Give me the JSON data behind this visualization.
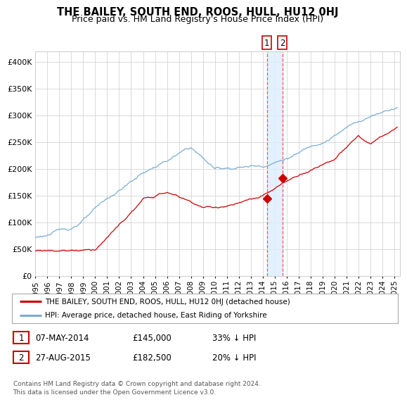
{
  "title": "THE BAILEY, SOUTH END, ROOS, HULL, HU12 0HJ",
  "subtitle": "Price paid vs. HM Land Registry's House Price Index (HPI)",
  "legend_line1": "THE BAILEY, SOUTH END, ROOS, HULL, HU12 0HJ (detached house)",
  "legend_line2": "HPI: Average price, detached house, East Riding of Yorkshire",
  "transaction1_label": "1",
  "transaction1_date": "07-MAY-2014",
  "transaction1_price": 145000,
  "transaction1_hpi_pct": "33% ↓ HPI",
  "transaction2_label": "2",
  "transaction2_date": "27-AUG-2015",
  "transaction2_price": 182500,
  "transaction2_hpi_pct": "20% ↓ HPI",
  "footer": "Contains HM Land Registry data © Crown copyright and database right 2024.\nThis data is licensed under the Open Government Licence v3.0.",
  "red_color": "#cc0000",
  "blue_color": "#7aadd4",
  "background_color": "#ffffff",
  "grid_color": "#cccccc",
  "shade_color": "#ddeeff",
  "dashed_line_color": "#ff5555",
  "ylim": [
    0,
    420000
  ],
  "yticks": [
    0,
    50000,
    100000,
    150000,
    200000,
    250000,
    300000,
    350000,
    400000
  ],
  "year_start": 1995,
  "year_end": 2025,
  "transaction1_x": 2014.35,
  "transaction2_x": 2015.65
}
